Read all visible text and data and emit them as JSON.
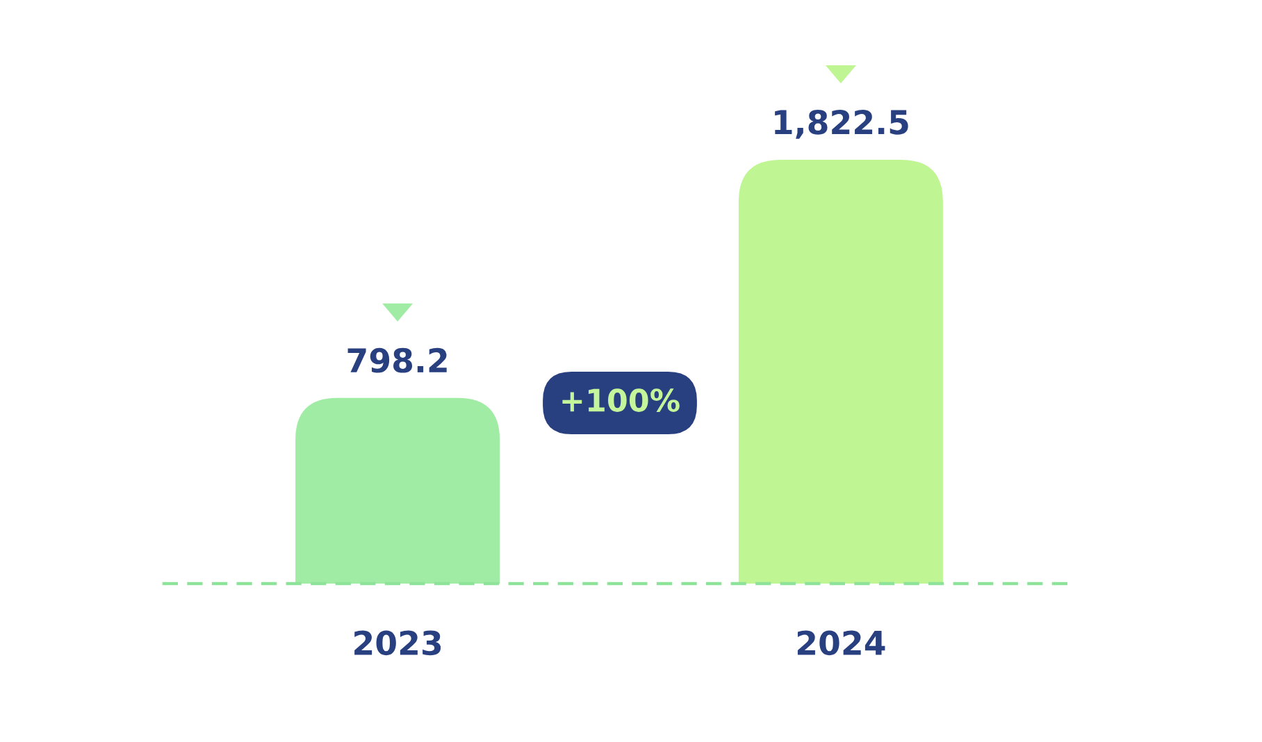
{
  "chart_data": {
    "type": "bar",
    "categories": [
      "2023",
      "2024"
    ],
    "values": [
      798.2,
      1822.5
    ],
    "colors": [
      "#a0eca5",
      "#bff593"
    ],
    "value_labels": [
      "798.2",
      "1,822.5"
    ],
    "annotations": [
      "+100%"
    ],
    "tick_labels": "x"
  }
}
